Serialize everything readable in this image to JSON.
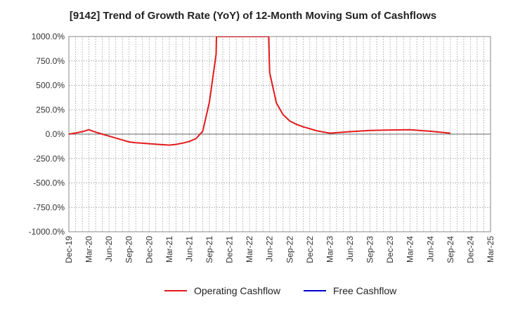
{
  "chart_data": {
    "type": "line",
    "title": "[9142]  Trend of Growth Rate (YoY) of 12-Month Moving Sum of Cashflows",
    "xlabel": "",
    "ylabel": "",
    "ylim": [
      -1000,
      1000
    ],
    "yticks": [
      1000,
      750,
      500,
      250,
      0,
      -250,
      -500,
      -750,
      -1000
    ],
    "ytick_labels": [
      "1000.0%",
      "750.0%",
      "500.0%",
      "250.0%",
      "0.0%",
      "-250.0%",
      "-500.0%",
      "-750.0%",
      "-1000.0%"
    ],
    "x_categories": [
      "Dec-19",
      "Mar-20",
      "Jun-20",
      "Sep-20",
      "Dec-20",
      "Mar-21",
      "Jun-21",
      "Sep-21",
      "Dec-21",
      "Mar-22",
      "Jun-22",
      "Sep-22",
      "Dec-22",
      "Mar-23",
      "Jun-23",
      "Sep-23",
      "Dec-23",
      "Mar-24",
      "Jun-24",
      "Sep-24",
      "Dec-24",
      "Mar-25"
    ],
    "grid": true,
    "legend_position": "bottom",
    "series": [
      {
        "name": "Operating Cashflow",
        "color": "#e31a1c",
        "points": [
          [
            "Dec-19",
            0
          ],
          [
            "Jan-20",
            12
          ],
          [
            "Feb-20",
            25
          ],
          [
            "Mar-20",
            45
          ],
          [
            "Apr-20",
            20
          ],
          [
            "May-20",
            0
          ],
          [
            "Jun-20",
            -20
          ],
          [
            "Jul-20",
            -40
          ],
          [
            "Aug-20",
            -60
          ],
          [
            "Sep-20",
            -80
          ],
          [
            "Oct-20",
            -88
          ],
          [
            "Nov-20",
            -93
          ],
          [
            "Dec-20",
            -98
          ],
          [
            "Jan-21",
            -103
          ],
          [
            "Feb-21",
            -108
          ],
          [
            "Mar-21",
            -112
          ],
          [
            "Apr-21",
            -105
          ],
          [
            "May-21",
            -92
          ],
          [
            "Jun-21",
            -75
          ],
          [
            "Jul-21",
            -45
          ],
          [
            "Aug-21",
            30
          ],
          [
            "Sep-21",
            330
          ],
          [
            "Oct-21",
            820
          ],
          [
            "Oct-21b",
            1000
          ],
          [
            "Jun-22a",
            1000
          ],
          [
            "Jun-22",
            630
          ],
          [
            "Jul-22",
            320
          ],
          [
            "Aug-22",
            200
          ],
          [
            "Sep-22",
            135
          ],
          [
            "Oct-22",
            100
          ],
          [
            "Nov-22",
            75
          ],
          [
            "Dec-22",
            55
          ],
          [
            "Jan-23",
            35
          ],
          [
            "Feb-23",
            22
          ],
          [
            "Mar-23",
            10
          ],
          [
            "Jun-23",
            25
          ],
          [
            "Sep-23",
            38
          ],
          [
            "Dec-23",
            42
          ],
          [
            "Mar-24",
            45
          ],
          [
            "Jun-24",
            30
          ],
          [
            "Sep-24",
            10
          ]
        ]
      },
      {
        "name": "Free Cashflow",
        "color": "#0000cc",
        "points": []
      }
    ]
  }
}
